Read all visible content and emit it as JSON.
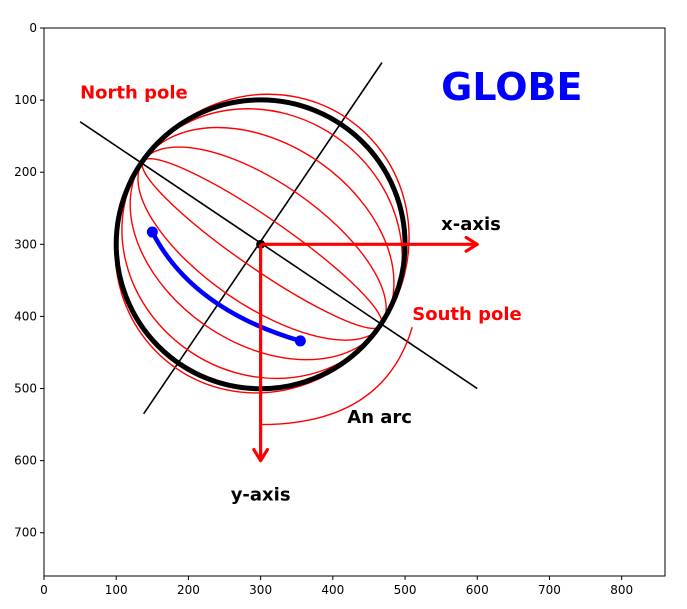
{
  "chart_data": {
    "type": "diagram",
    "title": "GLOBE",
    "xlim": [
      0,
      860
    ],
    "ylim": [
      760,
      0
    ],
    "x_ticks": [
      0,
      100,
      200,
      300,
      400,
      500,
      600,
      700,
      800
    ],
    "y_ticks": [
      0,
      100,
      200,
      300,
      400,
      500,
      600,
      700
    ],
    "colors": {
      "red": "#ff0000",
      "blue": "#0000ff",
      "black": "#000000"
    },
    "globe": {
      "center": [
        300,
        300
      ],
      "radius": 200
    },
    "axis_line": {
      "from": [
        50,
        130
      ],
      "to": [
        600,
        500
      ]
    },
    "perpendicular_line": {
      "from": [
        138,
        535
      ],
      "to": [
        468,
        48
      ]
    },
    "north_pole": [
      137,
      185
    ],
    "south_pole": [
      467,
      413
    ],
    "meridian_half_widths": [
      35,
      85,
      138,
      180,
      210
    ],
    "x_axis_arrow": {
      "from": [
        300,
        300
      ],
      "to": [
        600,
        300
      ]
    },
    "y_axis_arrow": {
      "from": [
        300,
        300
      ],
      "to": [
        300,
        600
      ]
    },
    "blue_arc": {
      "start": [
        150,
        283
      ],
      "end": [
        355,
        434
      ],
      "control": [
        205,
        390
      ]
    },
    "small_arc": {
      "start": [
        300,
        550
      ],
      "end": [
        510,
        415
      ],
      "control": [
        470,
        550
      ]
    },
    "labels": {
      "title": {
        "text": "GLOBE",
        "pos": [
          550,
          100
        ]
      },
      "north_pole": {
        "text": "North pole",
        "pos": [
          50,
          98
        ]
      },
      "south_pole": {
        "text": "South pole",
        "pos": [
          510,
          405
        ]
      },
      "x_axis": {
        "text": "x-axis",
        "pos": [
          550,
          280
        ]
      },
      "y_axis": {
        "text": "y-axis",
        "pos": [
          300,
          655
        ]
      },
      "arc": {
        "text": "An arc",
        "pos": [
          420,
          548
        ]
      }
    }
  }
}
